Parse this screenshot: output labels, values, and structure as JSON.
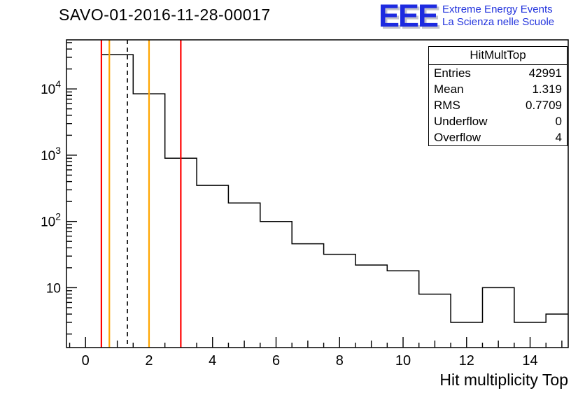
{
  "page": {
    "title": "SAVO-01-2016-11-28-00017"
  },
  "logo": {
    "eee": "EEE",
    "line1": "Extreme Energy Events",
    "line2": "La Scienza nelle Scuole",
    "blue": "#2233dd"
  },
  "stats_box": {
    "title": "HitMultTop",
    "rows": [
      [
        "Entries",
        "42991"
      ],
      [
        "Mean",
        "1.319"
      ],
      [
        "RMS",
        "0.7709"
      ],
      [
        "Underflow",
        "0"
      ],
      [
        "Overflow",
        "4"
      ]
    ]
  },
  "axes": {
    "x_label": "Hit multiplicity Top"
  },
  "chart_data": {
    "type": "bar",
    "subtype": "step-histogram",
    "title": "SAVO-01-2016-11-28-00017",
    "xlabel": "Hit multiplicity Top",
    "ylabel": "",
    "yscale": "log",
    "grid": false,
    "legend": "none",
    "x_range": [
      -0.6,
      15.2
    ],
    "y_range": [
      1.25,
      55000
    ],
    "x_major_ticks": [
      0,
      2,
      4,
      6,
      8,
      10,
      12,
      14
    ],
    "y_major_ticks": [
      10,
      100,
      1000,
      10000
    ],
    "bin_width": 1,
    "bin_centers": [
      1,
      2,
      3,
      4,
      5,
      6,
      7,
      8,
      9,
      10,
      11,
      12,
      13,
      14,
      15
    ],
    "counts": [
      32900,
      8440,
      900,
      350,
      190,
      100,
      46,
      32,
      22,
      18,
      8,
      3,
      10,
      3,
      4
    ],
    "line_color": "#000000",
    "stats": {
      "name": "HitMultTop",
      "entries": 42991,
      "mean": 1.319,
      "rms": 0.7709,
      "underflow": 0,
      "overflow": 4
    },
    "marker_lines": [
      {
        "x": 0.5,
        "color": "#ff0000",
        "style": "solid"
      },
      {
        "x": 0.75,
        "color": "#ffa500",
        "style": "solid"
      },
      {
        "x": 1.319,
        "color": "#000000",
        "style": "dashed"
      },
      {
        "x": 2.0,
        "color": "#ffa500",
        "style": "solid"
      },
      {
        "x": 3.0,
        "color": "#ff0000",
        "style": "solid"
      }
    ]
  }
}
